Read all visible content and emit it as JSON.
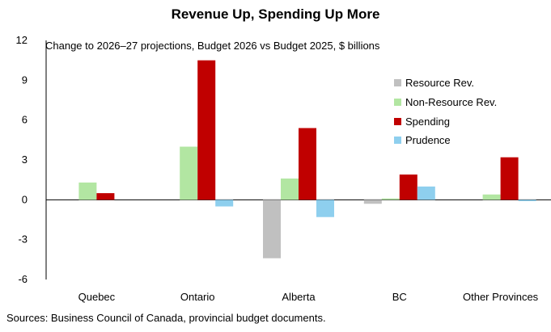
{
  "chart_data": {
    "type": "bar",
    "title": "Revenue Up, Spending Up More",
    "subtitle": "Change to 2026–27 projections, Budget 2026 vs Budget 2025, $ billions",
    "source": "Sources: Business Council of Canada, provincial budget documents.",
    "xlabel": "",
    "ylabel": "",
    "categories": [
      "Quebec",
      "Ontario",
      "Alberta",
      "BC",
      "Other Provinces"
    ],
    "ylim": [
      -6,
      12
    ],
    "yticks": [
      -6,
      -3,
      0,
      3,
      6,
      9,
      12
    ],
    "grid": false,
    "legend_position": "right",
    "series": [
      {
        "name": "Resource Rev.",
        "color": "#c0c0c0",
        "values": [
          0,
          0,
          -4.4,
          -0.3,
          0
        ]
      },
      {
        "name": "Non-Resource Rev.",
        "color": "#b2e6a2",
        "values": [
          1.3,
          4.0,
          1.6,
          0.1,
          0.4
        ]
      },
      {
        "name": "Spending",
        "color": "#c00000",
        "values": [
          0.5,
          10.5,
          5.4,
          1.9,
          3.2
        ]
      },
      {
        "name": "Prudence",
        "color": "#8ecfee",
        "values": [
          0,
          -0.5,
          -1.3,
          1.0,
          -0.1
        ]
      }
    ]
  }
}
